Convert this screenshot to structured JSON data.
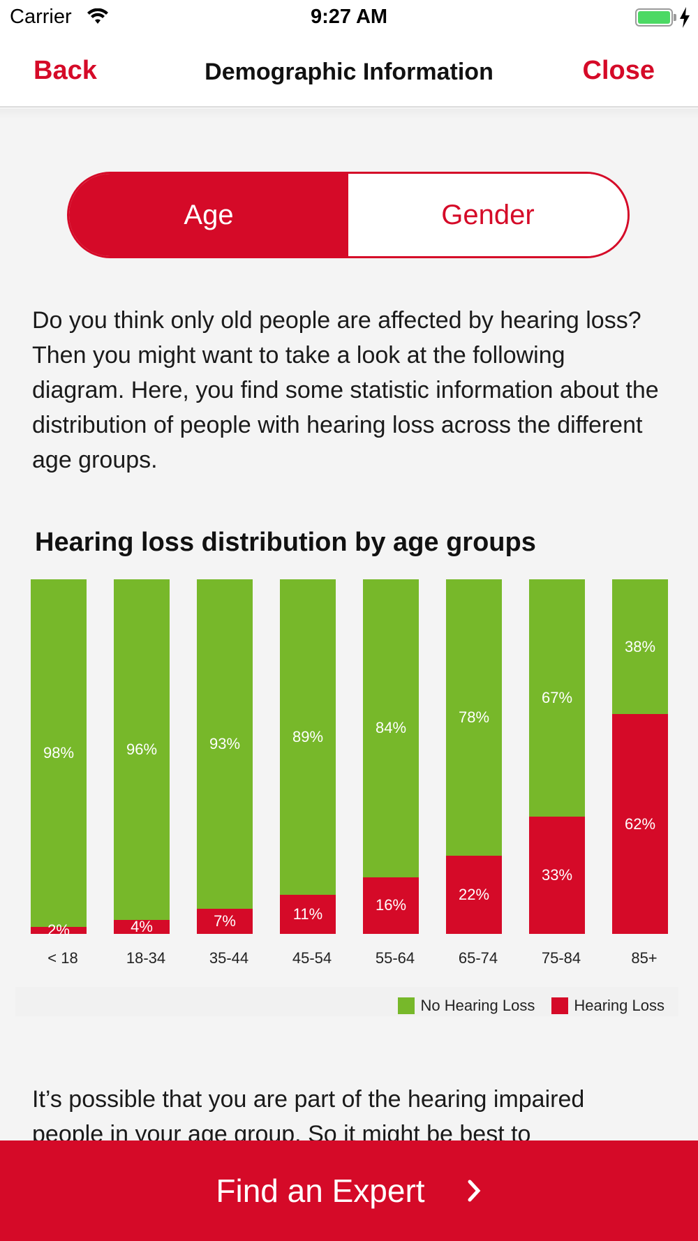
{
  "status_bar": {
    "carrier": "Carrier",
    "time": "9:27 AM"
  },
  "nav": {
    "back_label": "Back",
    "title": "Demographic Information",
    "close_label": "Close"
  },
  "segment": {
    "age_label": "Age",
    "gender_label": "Gender",
    "selected": "Age"
  },
  "intro_text": "Do you think only old people are affected by hearing loss? Then you might want to take a look at the following diagram. Here, you find some statistic information about the distribution of people with hearing loss across the different age groups.",
  "chart_title": "Hearing loss distribution by age groups",
  "chart_data": {
    "type": "bar",
    "stacked": true,
    "title": "Hearing loss distribution by age groups",
    "categories": [
      "< 18",
      "18-34",
      "35-44",
      "45-54",
      "55-64",
      "65-74",
      "75-84",
      "85+"
    ],
    "series": [
      {
        "name": "No Hearing Loss",
        "color": "#77b82a",
        "values": [
          98,
          96,
          93,
          89,
          84,
          78,
          67,
          38
        ],
        "labels": [
          "98%",
          "96%",
          "93%",
          "89%",
          "84%",
          "78%",
          "67%",
          "38%"
        ]
      },
      {
        "name": "Hearing Loss",
        "color": "#d50a28",
        "values": [
          2,
          4,
          7,
          11,
          16,
          22,
          33,
          62
        ],
        "labels": [
          "2%",
          "4%",
          "7%",
          "11%",
          "16%",
          "22%",
          "33%",
          "62%"
        ]
      }
    ],
    "ylim": [
      0,
      100
    ],
    "legend": "bottom-right"
  },
  "outro_text": "It’s possible that you are part of the hearing impaired people in your age group. So it might be best to",
  "cta": {
    "label": "Find an Expert",
    "icon": "chevron-right-icon"
  },
  "colors": {
    "accent": "#d50a28",
    "green": "#77b82a"
  }
}
